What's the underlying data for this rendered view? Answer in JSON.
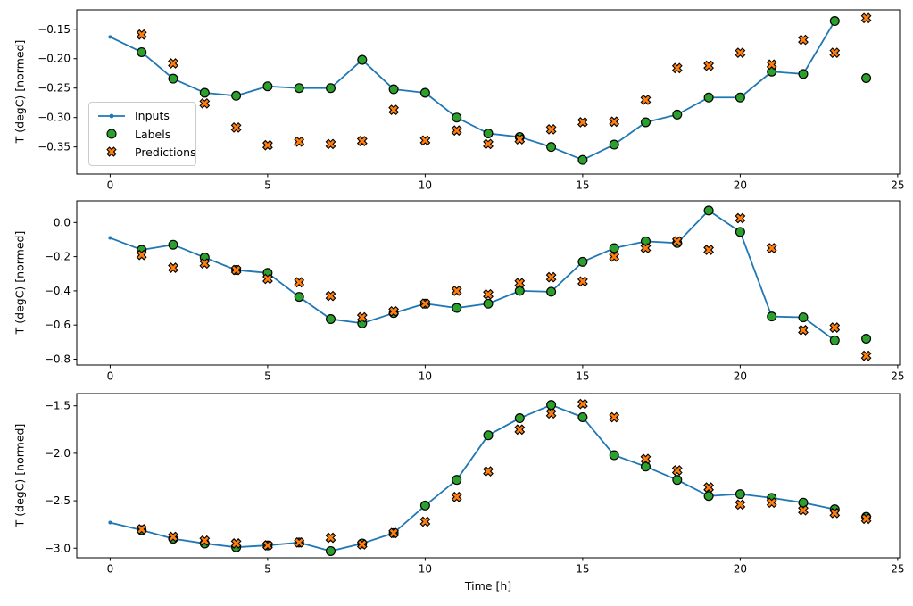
{
  "figure": {
    "xlabel": "Time [h]",
    "ylabel": "T (degC) [normed]"
  },
  "colors": {
    "inputs": "#1f77b4",
    "labels": "#2ca02c",
    "predictions": "#ff7f0e",
    "marker_edge": "#000000",
    "legend_border": "#cccccc"
  },
  "chart_data": [
    {
      "type": "line",
      "ylabel": "T (degC) [normed]",
      "xlim": [
        -1.06,
        25.06
      ],
      "ylim": [
        -0.396,
        -0.117
      ],
      "xticks": [
        0,
        5,
        10,
        15,
        20,
        25
      ],
      "xtick_labels": [
        "0",
        "5",
        "10",
        "15",
        "20",
        "25"
      ],
      "yticks": [
        -0.15,
        -0.2,
        -0.25,
        -0.3,
        -0.35
      ],
      "ytick_labels": [
        "−0.15",
        "−0.20",
        "−0.25",
        "−0.30",
        "−0.35"
      ],
      "grid": false,
      "legend": {
        "visible": true,
        "position": "center left inside"
      },
      "series": [
        {
          "name": "Inputs",
          "type": "line",
          "marker": "point",
          "color": "#1f77b4",
          "x": [
            0,
            1,
            2,
            3,
            4,
            5,
            6,
            7,
            8,
            9,
            10,
            11,
            12,
            13,
            14,
            15,
            16,
            17,
            18,
            19,
            20,
            21,
            22,
            23
          ],
          "y": [
            -0.163,
            -0.189,
            -0.234,
            -0.258,
            -0.263,
            -0.247,
            -0.25,
            -0.25,
            -0.202,
            -0.252,
            -0.258,
            -0.3,
            -0.327,
            -0.333,
            -0.35,
            -0.372,
            -0.346,
            -0.308,
            -0.295,
            -0.266,
            -0.266,
            -0.222,
            -0.226,
            -0.136
          ]
        },
        {
          "name": "Labels",
          "type": "scatter",
          "marker": "circle",
          "color": "#2ca02c",
          "edgecolor": "#000000",
          "x": [
            1,
            2,
            3,
            4,
            5,
            6,
            7,
            8,
            9,
            10,
            11,
            12,
            13,
            14,
            15,
            16,
            17,
            18,
            19,
            20,
            21,
            22,
            23,
            24
          ],
          "y": [
            -0.189,
            -0.234,
            -0.258,
            -0.263,
            -0.247,
            -0.25,
            -0.25,
            -0.202,
            -0.252,
            -0.258,
            -0.3,
            -0.327,
            -0.333,
            -0.35,
            -0.372,
            -0.346,
            -0.308,
            -0.295,
            -0.266,
            -0.266,
            -0.222,
            -0.226,
            -0.136,
            -0.233
          ]
        },
        {
          "name": "Predictions",
          "type": "scatter",
          "marker": "X",
          "color": "#ff7f0e",
          "edgecolor": "#000000",
          "x": [
            1,
            2,
            3,
            4,
            5,
            6,
            7,
            8,
            9,
            10,
            11,
            12,
            13,
            14,
            15,
            16,
            17,
            18,
            19,
            20,
            21,
            22,
            23,
            24
          ],
          "y": [
            -0.159,
            -0.208,
            -0.276,
            -0.317,
            -0.347,
            -0.341,
            -0.345,
            -0.34,
            -0.287,
            -0.339,
            -0.322,
            -0.345,
            -0.337,
            -0.32,
            -0.308,
            -0.307,
            -0.27,
            -0.216,
            -0.212,
            -0.19,
            -0.21,
            -0.168,
            -0.19,
            -0.131
          ]
        }
      ]
    },
    {
      "type": "line",
      "ylabel": "T (degC) [normed]",
      "xlim": [
        -1.06,
        25.06
      ],
      "ylim": [
        -0.834,
        0.127
      ],
      "xticks": [
        0,
        5,
        10,
        15,
        20,
        25
      ],
      "xtick_labels": [
        "0",
        "5",
        "10",
        "15",
        "20",
        "25"
      ],
      "yticks": [
        0.0,
        -0.2,
        -0.4,
        -0.6,
        -0.8
      ],
      "ytick_labels": [
        "0.0",
        "−0.2",
        "−0.4",
        "−0.6",
        "−0.8"
      ],
      "grid": false,
      "legend": {
        "visible": false
      },
      "series": [
        {
          "name": "Inputs",
          "type": "line",
          "marker": "point",
          "color": "#1f77b4",
          "x": [
            0,
            1,
            2,
            3,
            4,
            5,
            6,
            7,
            8,
            9,
            10,
            11,
            12,
            13,
            14,
            15,
            16,
            17,
            18,
            19,
            20,
            21,
            22,
            23
          ],
          "y": [
            -0.09,
            -0.16,
            -0.13,
            -0.205,
            -0.278,
            -0.295,
            -0.435,
            -0.565,
            -0.59,
            -0.53,
            -0.475,
            -0.5,
            -0.475,
            -0.4,
            -0.405,
            -0.23,
            -0.15,
            -0.11,
            -0.12,
            0.07,
            -0.055,
            -0.55,
            -0.555,
            -0.69
          ]
        },
        {
          "name": "Labels",
          "type": "scatter",
          "marker": "circle",
          "color": "#2ca02c",
          "edgecolor": "#000000",
          "x": [
            1,
            2,
            3,
            4,
            5,
            6,
            7,
            8,
            9,
            10,
            11,
            12,
            13,
            14,
            15,
            16,
            17,
            18,
            19,
            20,
            21,
            22,
            23,
            24
          ],
          "y": [
            -0.16,
            -0.13,
            -0.205,
            -0.278,
            -0.295,
            -0.435,
            -0.565,
            -0.59,
            -0.53,
            -0.475,
            -0.5,
            -0.475,
            -0.4,
            -0.405,
            -0.23,
            -0.15,
            -0.11,
            -0.12,
            0.07,
            -0.055,
            -0.55,
            -0.555,
            -0.69,
            -0.68
          ]
        },
        {
          "name": "Predictions",
          "type": "scatter",
          "marker": "X",
          "color": "#ff7f0e",
          "edgecolor": "#000000",
          "x": [
            1,
            2,
            3,
            4,
            5,
            6,
            7,
            8,
            9,
            10,
            11,
            12,
            13,
            14,
            15,
            16,
            17,
            18,
            19,
            20,
            21,
            22,
            23,
            24
          ],
          "y": [
            -0.19,
            -0.265,
            -0.24,
            -0.278,
            -0.33,
            -0.35,
            -0.43,
            -0.555,
            -0.52,
            -0.475,
            -0.4,
            -0.42,
            -0.355,
            -0.32,
            -0.345,
            -0.2,
            -0.15,
            -0.11,
            -0.16,
            0.025,
            -0.15,
            -0.63,
            -0.615,
            -0.78
          ]
        }
      ]
    },
    {
      "type": "line",
      "ylabel": "T (degC) [normed]",
      "xlabel": "Time [h]",
      "xlim": [
        -1.06,
        25.06
      ],
      "ylim": [
        -3.101,
        -1.371
      ],
      "xticks": [
        0,
        5,
        10,
        15,
        20,
        25
      ],
      "xtick_labels": [
        "0",
        "5",
        "10",
        "15",
        "20",
        "25"
      ],
      "yticks": [
        -1.5,
        -2.0,
        -2.5,
        -3.0
      ],
      "ytick_labels": [
        "−1.5",
        "−2.0",
        "−2.5",
        "−3.0"
      ],
      "grid": false,
      "legend": {
        "visible": false
      },
      "series": [
        {
          "name": "Inputs",
          "type": "line",
          "marker": "point",
          "color": "#1f77b4",
          "x": [
            0,
            1,
            2,
            3,
            4,
            5,
            6,
            7,
            8,
            9,
            10,
            11,
            12,
            13,
            14,
            15,
            16,
            17,
            18,
            19,
            20,
            21,
            22,
            23
          ],
          "y": [
            -2.73,
            -2.81,
            -2.9,
            -2.95,
            -2.99,
            -2.97,
            -2.94,
            -3.03,
            -2.95,
            -2.84,
            -2.55,
            -2.28,
            -1.81,
            -1.63,
            -1.49,
            -1.62,
            -2.02,
            -2.14,
            -2.28,
            -2.45,
            -2.43,
            -2.47,
            -2.52,
            -2.59
          ]
        },
        {
          "name": "Labels",
          "type": "scatter",
          "marker": "circle",
          "color": "#2ca02c",
          "edgecolor": "#000000",
          "x": [
            1,
            2,
            3,
            4,
            5,
            6,
            7,
            8,
            9,
            10,
            11,
            12,
            13,
            14,
            15,
            16,
            17,
            18,
            19,
            20,
            21,
            22,
            23,
            24
          ],
          "y": [
            -2.81,
            -2.9,
            -2.95,
            -2.99,
            -2.97,
            -2.94,
            -3.03,
            -2.95,
            -2.84,
            -2.55,
            -2.28,
            -1.81,
            -1.63,
            -1.49,
            -1.62,
            -2.02,
            -2.14,
            -2.28,
            -2.45,
            -2.43,
            -2.47,
            -2.52,
            -2.59,
            -2.67
          ]
        },
        {
          "name": "Predictions",
          "type": "scatter",
          "marker": "X",
          "color": "#ff7f0e",
          "edgecolor": "#000000",
          "x": [
            1,
            2,
            3,
            4,
            5,
            6,
            7,
            8,
            9,
            10,
            11,
            12,
            13,
            14,
            15,
            16,
            17,
            18,
            19,
            20,
            21,
            22,
            23,
            24
          ],
          "y": [
            -2.8,
            -2.88,
            -2.92,
            -2.95,
            -2.97,
            -2.94,
            -2.89,
            -2.96,
            -2.84,
            -2.72,
            -2.46,
            -2.19,
            -1.75,
            -1.58,
            -1.48,
            -1.62,
            -2.06,
            -2.18,
            -2.36,
            -2.54,
            -2.52,
            -2.6,
            -2.63,
            -2.69
          ]
        }
      ]
    }
  ]
}
